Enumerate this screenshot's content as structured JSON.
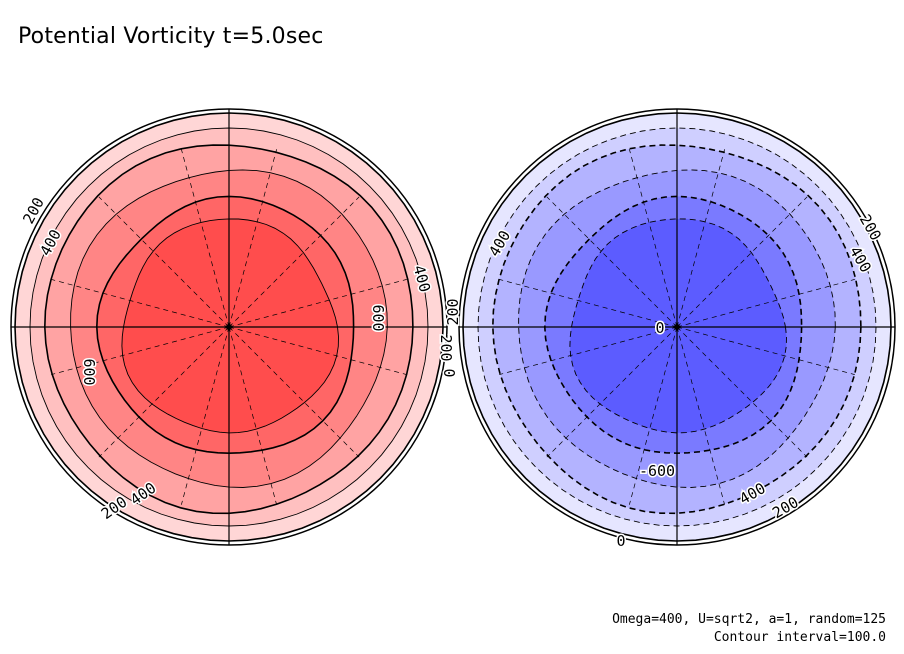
{
  "title": "Potential Vorticity t=5.0sec",
  "params_note": "Omega=400, U=sqrt2, a=1, random=125",
  "interval_note": "Contour interval=100.0",
  "chart_data": [
    {
      "type": "polar contour",
      "hemisphere": "north",
      "colors": [
        "#ffd6d6",
        "#ffc0c0",
        "#ffa3a3",
        "#ff8585",
        "#ff6666",
        "#ff4d4d",
        "#ff4040"
      ],
      "levels": [
        0,
        100,
        200,
        300,
        400,
        500,
        600,
        700
      ],
      "contour_labels": [
        "200",
        "400",
        "400",
        "600",
        "600",
        "200",
        "400",
        "200"
      ],
      "max_approx": 700
    },
    {
      "type": "polar contour",
      "hemisphere": "south",
      "colors": [
        "#e6e6ff",
        "#cfcfff",
        "#b3b3ff",
        "#9999ff",
        "#7a7aff",
        "#5c5cff",
        "#4444ff"
      ],
      "levels": [
        0,
        -100,
        -200,
        -300,
        -400,
        -500,
        -600,
        -700
      ],
      "contour_labels": [
        "0",
        "200",
        "400",
        "200",
        "400",
        "-600",
        "400",
        "200",
        "0",
        "0"
      ],
      "min_approx": -700
    }
  ]
}
